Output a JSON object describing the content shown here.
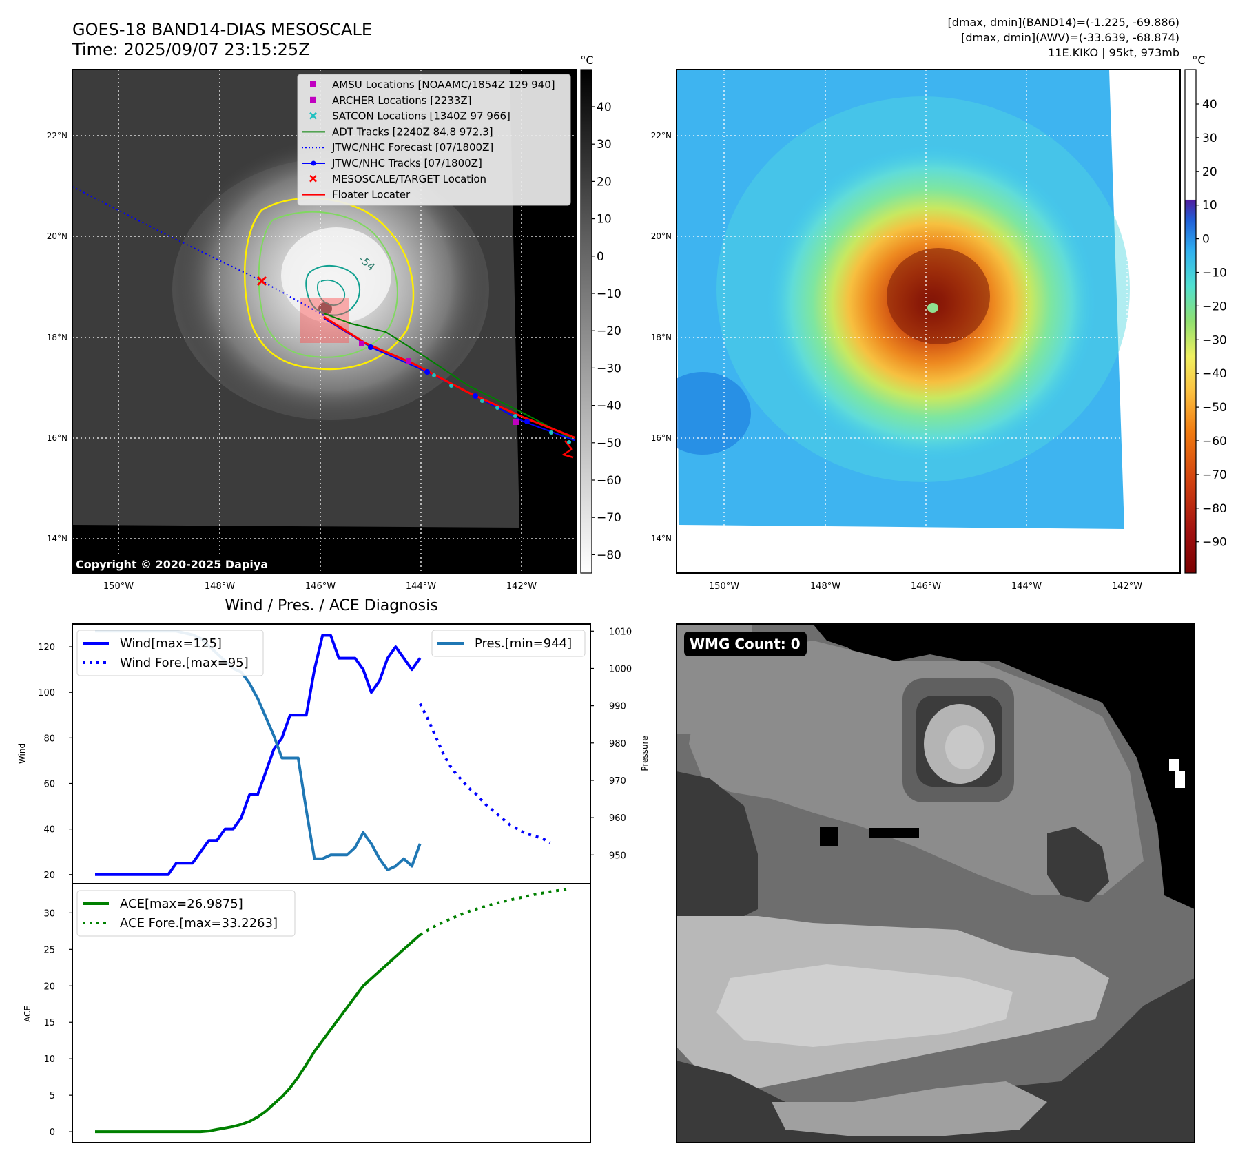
{
  "header": {
    "title": "GOES-18 BAND14-DIAS MESOSCALE",
    "time": "Time: 2025/09/07 23:15:25Z",
    "stats_line1": "[dmax, dmin](BAND14)=(-1.225, -69.886)",
    "stats_line2": "[dmax, dmin](AWV)=(-33.639, -68.874)",
    "storm_info": "11E.KIKO | 95kt, 973mb"
  },
  "map": {
    "lat_labels": [
      "22°N",
      "20°N",
      "18°N",
      "16°N",
      "14°N"
    ],
    "lon_labels": [
      "150°W",
      "148°W",
      "146°W",
      "144°W",
      "142°W"
    ],
    "copyright": "Copyright © 2020-2025 Dapiya",
    "contour_label": "-54",
    "legend": [
      {
        "label": "AMSU Locations [NOAAMC/1854Z 129 940]",
        "color": "#c000c0",
        "marker": "square"
      },
      {
        "label": "ARCHER Locations [2233Z]",
        "color": "#c000c0",
        "marker": "square"
      },
      {
        "label": "SATCON Locations [1340Z 97 966]",
        "color": "#20c0c0",
        "marker": "x"
      },
      {
        "label": "ADT Tracks [2240Z 84.8 972.3]",
        "color": "#008000",
        "marker": "line"
      },
      {
        "label": "JTWC/NHC Forecast [07/1800Z]",
        "color": "#0000ff",
        "marker": "dotted"
      },
      {
        "label": "JTWC/NHC Tracks [07/1800Z]",
        "color": "#0000ff",
        "marker": "line-dot"
      },
      {
        "label": "MESOSCALE/TARGET Location",
        "color": "#ff0000",
        "marker": "x"
      },
      {
        "label": "Floater Locater",
        "color": "#ff0000",
        "marker": "line"
      }
    ]
  },
  "colorbar_gray": {
    "unit": "°C",
    "ticks": [
      "40",
      "30",
      "20",
      "10",
      "0",
      "−10",
      "−20",
      "−30",
      "−40",
      "−50",
      "−60",
      "−70",
      "−80"
    ]
  },
  "colorbar_color": {
    "unit": "°C",
    "ticks": [
      "40",
      "30",
      "20",
      "10",
      "0",
      "−10",
      "−20",
      "−30",
      "−40",
      "−50",
      "−60",
      "−70",
      "−80",
      "−90"
    ]
  },
  "wmg": {
    "label": "WMG Count: 0"
  },
  "colors": {
    "wind": "#0000ff",
    "pressure": "#1f77b4",
    "ace": "#008000",
    "floater": "#ff0000"
  },
  "chart_data": [
    {
      "type": "line",
      "title": "Wind / Pres. / ACE Diagnosis",
      "xlabel": "",
      "ylabel": "Wind",
      "ylabel_right": "Pressure",
      "ylim": [
        16,
        130
      ],
      "ylim_right": [
        942.3,
        1011.9
      ],
      "yticks": [
        20,
        40,
        60,
        80,
        100,
        120
      ],
      "yticks_right": [
        950,
        960,
        970,
        980,
        990,
        1000,
        1010
      ],
      "x_index_range": [
        0,
        58
      ],
      "series": [
        {
          "name": "Wind[max=125]",
          "axis": "left",
          "style": "solid",
          "color": "#0000ff",
          "x": [
            0,
            1,
            2,
            3,
            4,
            5,
            6,
            7,
            8,
            9,
            10,
            11,
            12,
            13,
            14,
            15,
            16,
            17,
            18,
            19,
            20,
            21,
            22,
            23,
            24,
            25,
            26,
            27,
            28,
            29,
            30,
            31,
            32,
            33,
            34,
            35,
            36,
            37,
            38,
            39,
            40
          ],
          "values": [
            20,
            20,
            20,
            20,
            20,
            20,
            20,
            20,
            20,
            20,
            25,
            25,
            25,
            30,
            35,
            35,
            40,
            40,
            45,
            55,
            55,
            65,
            75,
            80,
            90,
            90,
            90,
            110,
            125,
            125,
            115,
            115,
            115,
            110,
            100,
            105,
            115,
            120,
            115,
            110,
            115
          ]
        },
        {
          "name": "Wind Fore.[max=95]",
          "axis": "left",
          "style": "dotted",
          "color": "#0000ff",
          "x": [
            40,
            41,
            42,
            43,
            44,
            45,
            46,
            47,
            48,
            49,
            50,
            51,
            52,
            53,
            54,
            55,
            56
          ],
          "values": [
            95,
            88,
            80,
            72,
            66,
            62,
            58,
            55,
            51,
            48,
            45,
            42,
            40,
            38,
            37,
            36,
            34
          ]
        },
        {
          "name": "Pres.[min=944]",
          "axis": "right",
          "style": "solid",
          "color": "#1f77b4",
          "x": [
            0,
            1,
            2,
            3,
            4,
            5,
            6,
            7,
            8,
            9,
            10,
            11,
            12,
            13,
            14,
            15,
            16,
            17,
            18,
            19,
            20,
            21,
            22,
            23,
            24,
            25,
            26,
            27,
            28,
            29,
            30,
            31,
            32,
            33,
            34,
            35,
            36,
            37,
            38,
            39,
            40
          ],
          "values": [
            1010,
            1010,
            1010,
            1010,
            1010,
            1010,
            1010,
            1010,
            1010,
            1010,
            1010,
            1009.5,
            1009,
            1008,
            1006,
            1004,
            1002,
            1000,
            999,
            996,
            992,
            987,
            982,
            976,
            976,
            976,
            962,
            949,
            949,
            950,
            950,
            950,
            952,
            956,
            953,
            949,
            946,
            947,
            949,
            947,
            953
          ]
        },
        {
          "name": "ACE[max=26.9875]",
          "axis": "ace",
          "style": "solid",
          "color": "#008000",
          "x": [
            0,
            1,
            2,
            3,
            4,
            5,
            6,
            7,
            8,
            9,
            10,
            11,
            12,
            13,
            14,
            15,
            16,
            17,
            18,
            19,
            20,
            21,
            22,
            23,
            24,
            25,
            26,
            27,
            28,
            29,
            30,
            31,
            32,
            33,
            34,
            35,
            36,
            37,
            38,
            39,
            40
          ],
          "values": [
            0,
            0,
            0,
            0,
            0,
            0,
            0,
            0,
            0,
            0,
            0,
            0,
            0,
            0,
            0.1,
            0.3,
            0.5,
            0.7,
            1.0,
            1.4,
            2.0,
            2.8,
            3.8,
            4.8,
            6.0,
            7.5,
            9.2,
            11.0,
            12.5,
            14.0,
            15.5,
            17.0,
            18.5,
            20.0,
            21.0,
            22.0,
            23.0,
            24.0,
            25.0,
            26.0,
            26.99
          ]
        },
        {
          "name": "ACE Fore.[max=33.2263]",
          "axis": "ace",
          "style": "dotted",
          "color": "#008000",
          "x": [
            40,
            42,
            44,
            46,
            48,
            50,
            52,
            54,
            56,
            58
          ],
          "values": [
            26.99,
            28.3,
            29.3,
            30.2,
            30.9,
            31.5,
            32.0,
            32.5,
            32.9,
            33.23
          ]
        }
      ],
      "ace_panel": {
        "ylabel": "ACE",
        "ylim": [
          -1.5,
          34
        ],
        "yticks": [
          0,
          5,
          10,
          15,
          20,
          25,
          30
        ]
      }
    }
  ]
}
